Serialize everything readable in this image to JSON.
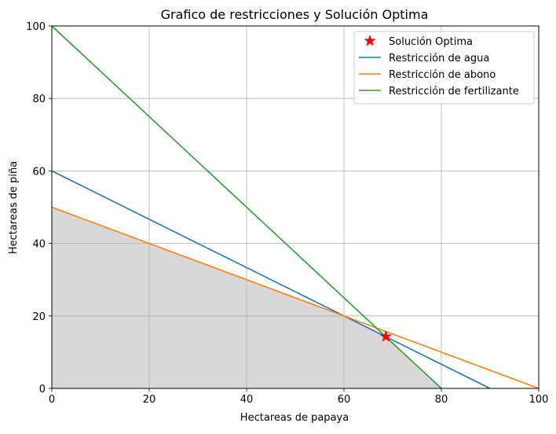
{
  "chart_data": {
    "type": "line",
    "title": "Grafico de restricciones y Solución Optima",
    "xlabel": "Hectareas de papaya",
    "ylabel": "Hectareas de piña",
    "xlim": [
      0,
      100
    ],
    "ylim": [
      0,
      100
    ],
    "x_ticks": [
      0,
      20,
      40,
      60,
      80,
      100
    ],
    "y_ticks": [
      0,
      20,
      40,
      60,
      80,
      100
    ],
    "grid": true,
    "legend_position": "top-right",
    "series": [
      {
        "name": "Restricción de agua",
        "color": "#1f77b4",
        "x": [
          0,
          90
        ],
        "y": [
          60,
          0
        ]
      },
      {
        "name": "Restricción de abono",
        "color": "#ff7f0e",
        "x": [
          0,
          100
        ],
        "y": [
          50,
          0
        ]
      },
      {
        "name": "Restricción de fertilizante",
        "color": "#2ca02c",
        "x": [
          0,
          80
        ],
        "y": [
          100,
          0
        ]
      }
    ],
    "optimal_point": {
      "name": "Solución Optima",
      "color": "#ff0000",
      "marker": "star",
      "x": 68.6,
      "y": 14.3
    },
    "feasible_region": {
      "color": "#d7d7d7",
      "polygon": [
        [
          0,
          0
        ],
        [
          0,
          50
        ],
        [
          60,
          20
        ],
        [
          68.6,
          14.3
        ],
        [
          80,
          0
        ]
      ]
    }
  }
}
